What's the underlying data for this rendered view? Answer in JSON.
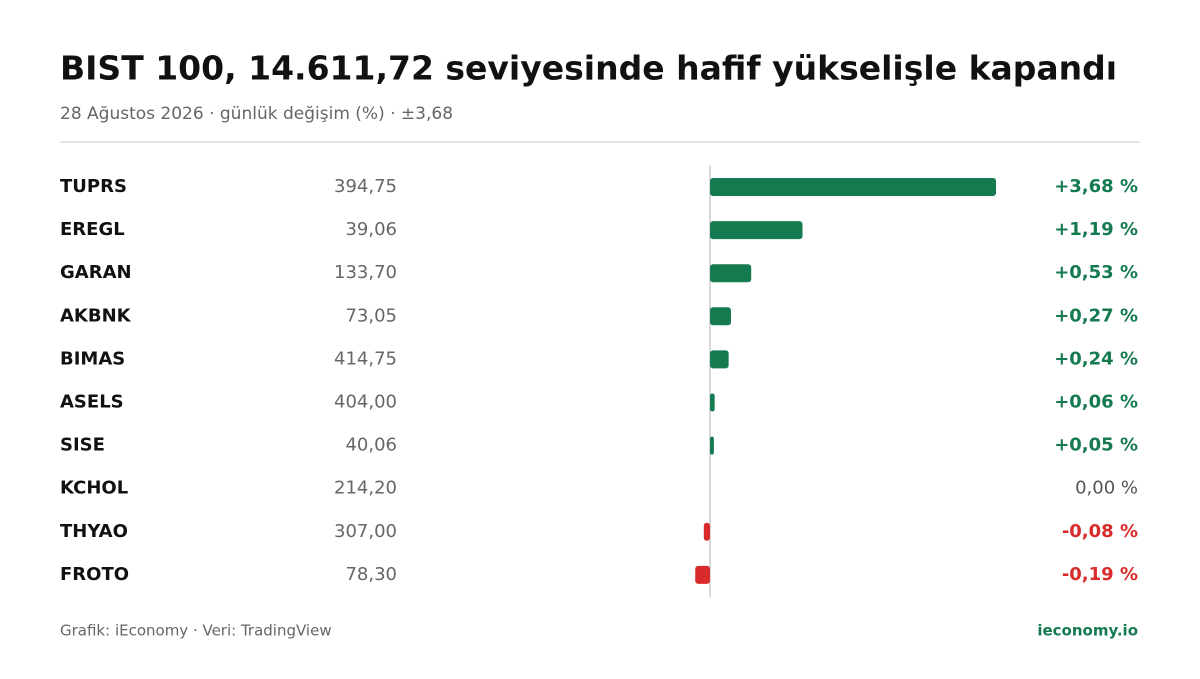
{
  "chart_data": {
    "type": "bar",
    "title": "BIST 100, 14.611,72 seviyesinde hafif yükselişle kapandı",
    "subtitle": "28 Ağustos 2026 · günlük değişim (%) · ±3,68",
    "categories": [
      "TUPRS",
      "EREGL",
      "GARAN",
      "AKBNK",
      "BIMAS",
      "ASELS",
      "SISE",
      "KCHOL",
      "THYAO",
      "FROTO"
    ],
    "prices": [
      "394,75",
      "39,06",
      "133,70",
      "73,05",
      "414,75",
      "404,00",
      "40,06",
      "214,20",
      "307,00",
      "78,30"
    ],
    "values": [
      3.68,
      1.19,
      0.53,
      0.27,
      0.24,
      0.06,
      0.05,
      0,
      -0.08,
      -0.19
    ],
    "value_labels": [
      "+3,68 %",
      "+1,19 %",
      "+0,53 %",
      "+0,27 %",
      "+0,24 %",
      "+0,06 %",
      "+0,05 %",
      "0,00 %",
      "-0,08 %",
      "-0,19 %"
    ],
    "xlim": [
      -3.68,
      3.68
    ],
    "color": "#157a4f",
    "negative_color": "#d92b2b",
    "neutral_color": "#555555",
    "source": "Grafik: iEconomy · Veri: TradingView",
    "brand": "ieconomy.io"
  }
}
